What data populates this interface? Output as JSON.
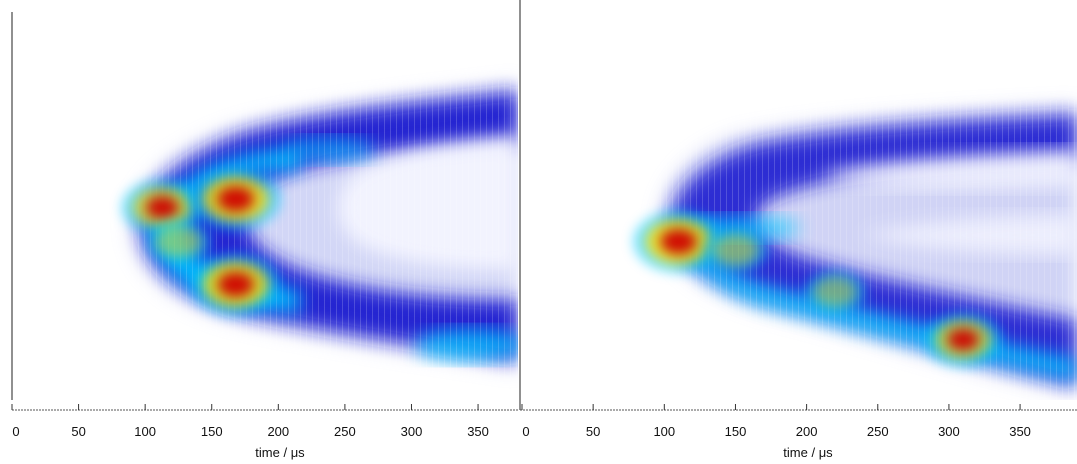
{
  "chart_data": [
    {
      "type": "heatmap",
      "title": "",
      "xlabel": "time / μs",
      "ylabel": "",
      "xlim": [
        0,
        380
      ],
      "xticks": [
        0,
        50,
        100,
        150,
        200,
        250,
        300,
        350
      ],
      "xtick_labels": [
        "0",
        "50",
        "100",
        "150",
        "200",
        "250",
        "300",
        "350"
      ],
      "grid": false,
      "colormap": [
        "#ffffff",
        "#1f1fd0",
        "#00c8ff",
        "#ffe000",
        "#d00000"
      ],
      "front_time_us": 95,
      "hotspots": [
        {
          "x": 113,
          "y": 0.57,
          "intensity": 0.85
        },
        {
          "x": 168,
          "y": 0.6,
          "intensity": 1.0
        },
        {
          "x": 168,
          "y": 0.3,
          "intensity": 1.0
        },
        {
          "x": 125,
          "y": 0.45,
          "intensity": 0.55
        }
      ]
    },
    {
      "type": "heatmap",
      "title": "",
      "xlabel": "time / μs",
      "ylabel": "",
      "xlim": [
        0,
        390
      ],
      "xticks": [
        0,
        50,
        100,
        150,
        200,
        250,
        300,
        350
      ],
      "xtick_labels": [
        "0",
        "50",
        "100",
        "150",
        "200",
        "250",
        "300",
        "350"
      ],
      "grid": false,
      "colormap": [
        "#ffffff",
        "#1f1fd0",
        "#00c8ff",
        "#ffe000",
        "#d00000"
      ],
      "front_time_us": 100,
      "hotspots": [
        {
          "x": 110,
          "y": 0.53,
          "intensity": 1.0
        },
        {
          "x": 310,
          "y": 0.18,
          "intensity": 0.8
        },
        {
          "x": 150,
          "y": 0.5,
          "intensity": 0.55
        },
        {
          "x": 220,
          "y": 0.35,
          "intensity": 0.5
        }
      ]
    }
  ]
}
